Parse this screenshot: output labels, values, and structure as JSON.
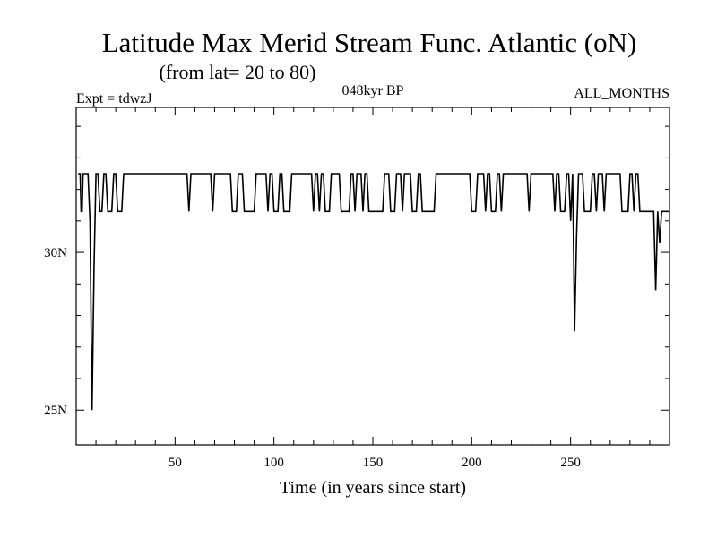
{
  "chart_data": {
    "type": "line",
    "title": "Latitude Max Merid Stream Func. Atlantic (oN)",
    "subtitle": "(from lat= 20 to 80)",
    "left_note": "Expt = tdwzJ",
    "center_note": "048kyr BP",
    "right_note": "ALL_MONTHS",
    "xlabel": "Time (in years since start)",
    "ylabel": "",
    "xlim": [
      0,
      300
    ],
    "ylim": [
      23.9,
      34.6
    ],
    "x_ticks": [
      50,
      100,
      150,
      200,
      250
    ],
    "x_tick_labels": [
      "50",
      "100",
      "150",
      "200",
      "250"
    ],
    "y_ticks": [
      25,
      30
    ],
    "y_tick_labels": [
      "25N",
      "30N"
    ],
    "grid": false,
    "series": [
      {
        "name": "",
        "color": "#000000",
        "points": [
          [
            1,
            32.5
          ],
          [
            2,
            32.5
          ],
          [
            2.5,
            31.3
          ],
          [
            3,
            31.3
          ],
          [
            3.5,
            32.5
          ],
          [
            6,
            32.5
          ],
          [
            7,
            31.0
          ],
          [
            8,
            25.0
          ],
          [
            9,
            29.5
          ],
          [
            10,
            32.5
          ],
          [
            11,
            32.5
          ],
          [
            12,
            31.3
          ],
          [
            13,
            31.3
          ],
          [
            14,
            32.5
          ],
          [
            15,
            32.5
          ],
          [
            16,
            31.3
          ],
          [
            18,
            31.3
          ],
          [
            19,
            32.5
          ],
          [
            20,
            32.5
          ],
          [
            21,
            31.3
          ],
          [
            23,
            31.3
          ],
          [
            24,
            32.5
          ],
          [
            56,
            32.5
          ],
          [
            57,
            31.3
          ],
          [
            58,
            32.5
          ],
          [
            68,
            32.5
          ],
          [
            69,
            31.3
          ],
          [
            70,
            32.5
          ],
          [
            78,
            32.5
          ],
          [
            79,
            31.3
          ],
          [
            81,
            31.3
          ],
          [
            82,
            32.5
          ],
          [
            84,
            32.5
          ],
          [
            85,
            31.3
          ],
          [
            90,
            31.3
          ],
          [
            91,
            32.5
          ],
          [
            96,
            32.5
          ],
          [
            97,
            31.3
          ],
          [
            98,
            32.5
          ],
          [
            99,
            32.5
          ],
          [
            100,
            31.3
          ],
          [
            102,
            31.3
          ],
          [
            103,
            32.5
          ],
          [
            104,
            32.5
          ],
          [
            105,
            31.3
          ],
          [
            108,
            31.3
          ],
          [
            109,
            32.5
          ],
          [
            119,
            32.5
          ],
          [
            120,
            31.3
          ],
          [
            121,
            32.5
          ],
          [
            122,
            32.5
          ],
          [
            123,
            31.3
          ],
          [
            124,
            32.5
          ],
          [
            125,
            32.5
          ],
          [
            126,
            31.3
          ],
          [
            128,
            31.3
          ],
          [
            129,
            32.5
          ],
          [
            133,
            32.5
          ],
          [
            134,
            31.3
          ],
          [
            138,
            31.3
          ],
          [
            139,
            32.5
          ],
          [
            140,
            32.5
          ],
          [
            141,
            31.3
          ],
          [
            142,
            32.5
          ],
          [
            144,
            32.5
          ],
          [
            145,
            31.3
          ],
          [
            146,
            32.5
          ],
          [
            147,
            32.5
          ],
          [
            148,
            31.3
          ],
          [
            155,
            31.3
          ],
          [
            156,
            32.5
          ],
          [
            158,
            32.5
          ],
          [
            159,
            31.3
          ],
          [
            161,
            31.3
          ],
          [
            162,
            32.5
          ],
          [
            164,
            32.5
          ],
          [
            165,
            31.3
          ],
          [
            166,
            32.5
          ],
          [
            169,
            32.5
          ],
          [
            170,
            31.3
          ],
          [
            172,
            31.3
          ],
          [
            173,
            32.5
          ],
          [
            174,
            32.5
          ],
          [
            175,
            31.3
          ],
          [
            181,
            31.3
          ],
          [
            182,
            32.5
          ],
          [
            199,
            32.5
          ],
          [
            200,
            31.3
          ],
          [
            202,
            31.3
          ],
          [
            203,
            32.5
          ],
          [
            206,
            32.5
          ],
          [
            207,
            31.3
          ],
          [
            208,
            32.5
          ],
          [
            209,
            32.5
          ],
          [
            210,
            31.3
          ],
          [
            212,
            31.3
          ],
          [
            213,
            32.5
          ],
          [
            214,
            32.5
          ],
          [
            215,
            31.3
          ],
          [
            216,
            32.5
          ],
          [
            228,
            32.5
          ],
          [
            229,
            31.3
          ],
          [
            230,
            32.5
          ],
          [
            241,
            32.5
          ],
          [
            242,
            31.3
          ],
          [
            243,
            32.5
          ],
          [
            244,
            32.5
          ],
          [
            245,
            31.3
          ],
          [
            247,
            31.3
          ],
          [
            248,
            32.5
          ],
          [
            249,
            32.5
          ],
          [
            250,
            31.0
          ],
          [
            251,
            32.5
          ],
          [
            252,
            27.5
          ],
          [
            253,
            30.5
          ],
          [
            254,
            32.5
          ],
          [
            256,
            32.5
          ],
          [
            257,
            31.3
          ],
          [
            260,
            31.3
          ],
          [
            261,
            32.5
          ],
          [
            262,
            32.5
          ],
          [
            263,
            31.3
          ],
          [
            264,
            32.5
          ],
          [
            266,
            32.5
          ],
          [
            267,
            31.3
          ],
          [
            268,
            32.5
          ],
          [
            275,
            32.5
          ],
          [
            276,
            31.3
          ],
          [
            279,
            31.3
          ],
          [
            280,
            32.5
          ],
          [
            281,
            32.5
          ],
          [
            282,
            31.3
          ],
          [
            283,
            32.5
          ],
          [
            284,
            32.5
          ],
          [
            285,
            31.3
          ],
          [
            292,
            31.3
          ],
          [
            293,
            28.8
          ],
          [
            294,
            31.3
          ],
          [
            295,
            30.3
          ],
          [
            296,
            31.3
          ],
          [
            300,
            31.3
          ]
        ]
      }
    ]
  }
}
